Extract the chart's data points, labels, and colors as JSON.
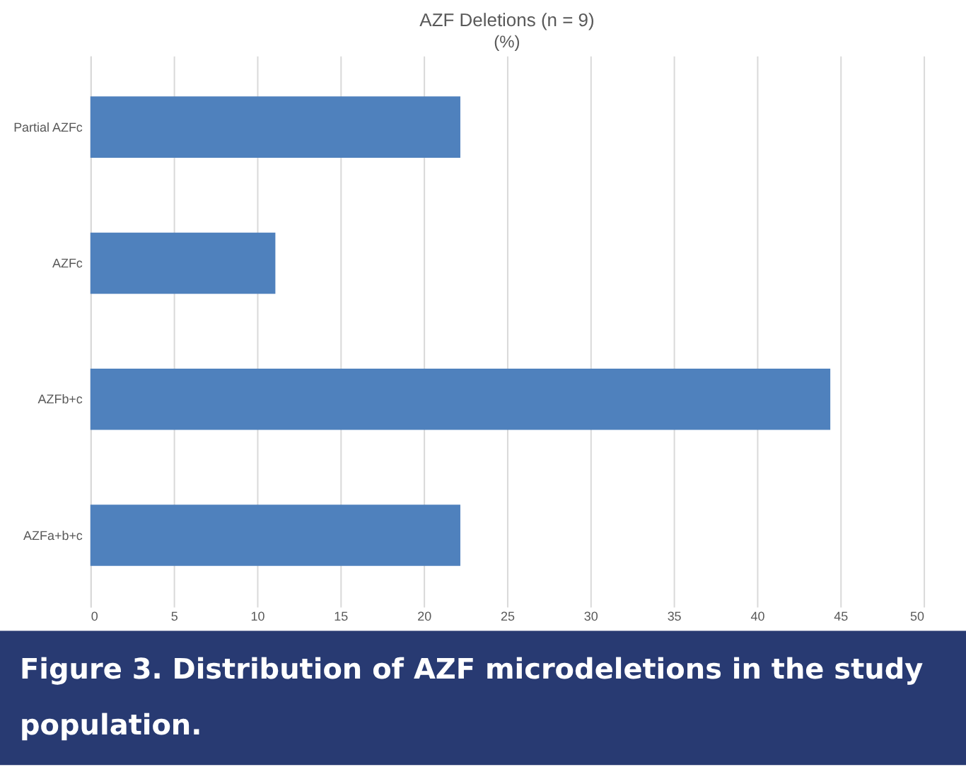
{
  "chart_data": {
    "type": "bar",
    "orientation": "horizontal",
    "title": "AZF Deletions (n = 9)",
    "subtitle": "(%)",
    "categories": [
      "Partial AZFc",
      "AZFc",
      "AZFb+c",
      "AZFa+b+c"
    ],
    "values": [
      22.2,
      11.1,
      44.4,
      22.2
    ],
    "color": "#4f81bd",
    "xlim": [
      0,
      50
    ],
    "xticks": [
      0,
      5,
      10,
      15,
      20,
      25,
      30,
      35,
      40,
      45,
      50
    ],
    "grid": "x",
    "annotations": [
      "Figure 3.  Distribution of AZF microdeletions in the study population."
    ]
  }
}
